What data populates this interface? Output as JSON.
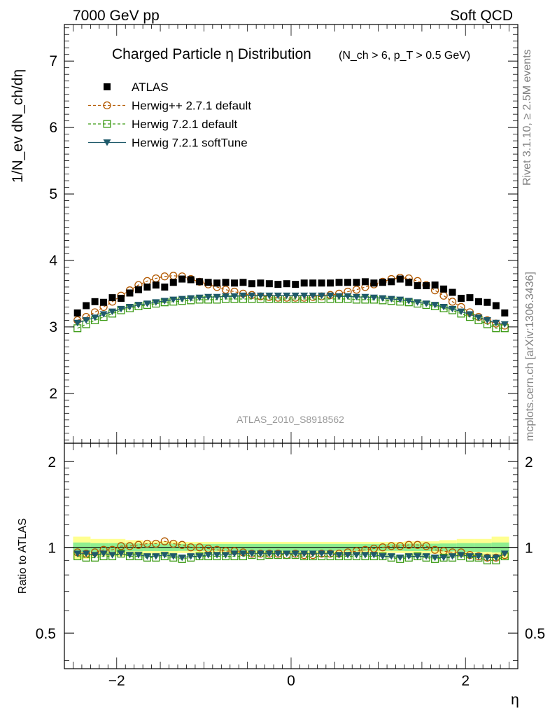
{
  "header": {
    "left_label": "7000 GeV pp",
    "right_label": "Soft QCD"
  },
  "side_labels": {
    "rivet": "Rivet 3.1.10, ≥ 2.5M events",
    "mcplots": "mcplots.cern.ch [arXiv:1306.3436]"
  },
  "watermark": "ATLAS_2010_S8918562",
  "colors": {
    "atlas": "#000000",
    "herwigpp": "#b35900",
    "herwig_default": "#3a9a13",
    "herwig_softtune": "#1f5a6a",
    "band_inner": "#90ee90",
    "band_outer": "#ffff90"
  },
  "chart_data": [
    {
      "panel": "main",
      "type": "scatter",
      "title": "Charged Particle η Distribution",
      "subtitle": "(N_ch > 6, p_T > 0.5 GeV)",
      "xlabel": "η",
      "ylabel": "1/N_ev dN_ch/dη",
      "xlim": [
        -2.5,
        2.5
      ],
      "ylim": [
        1.25,
        7.55
      ],
      "y_ticks": [
        2,
        3,
        4,
        5,
        6,
        7
      ],
      "legend_position": "top-left",
      "x": [
        -2.45,
        -2.35,
        -2.25,
        -2.15,
        -2.05,
        -1.95,
        -1.85,
        -1.75,
        -1.65,
        -1.55,
        -1.45,
        -1.35,
        -1.25,
        -1.15,
        -1.05,
        -0.95,
        -0.85,
        -0.75,
        -0.65,
        -0.55,
        -0.45,
        -0.35,
        -0.25,
        -0.15,
        -0.05,
        0.05,
        0.15,
        0.25,
        0.35,
        0.45,
        0.55,
        0.65,
        0.75,
        0.85,
        0.95,
        1.05,
        1.15,
        1.25,
        1.35,
        1.45,
        1.55,
        1.65,
        1.75,
        1.85,
        1.95,
        2.05,
        2.15,
        2.25,
        2.35,
        2.45
      ],
      "series": [
        {
          "name": "ATLAS",
          "marker": "filled-square",
          "values": [
            3.21,
            3.32,
            3.38,
            3.37,
            3.44,
            3.43,
            3.51,
            3.56,
            3.6,
            3.63,
            3.6,
            3.67,
            3.72,
            3.71,
            3.68,
            3.67,
            3.66,
            3.67,
            3.66,
            3.67,
            3.65,
            3.66,
            3.65,
            3.64,
            3.65,
            3.64,
            3.66,
            3.66,
            3.66,
            3.66,
            3.67,
            3.67,
            3.67,
            3.68,
            3.66,
            3.67,
            3.68,
            3.72,
            3.67,
            3.62,
            3.62,
            3.63,
            3.57,
            3.52,
            3.43,
            3.44,
            3.38,
            3.37,
            3.32,
            3.21
          ]
        },
        {
          "name": "Herwig++ 2.7.1 default",
          "marker": "open-circle",
          "line": "dashed",
          "values": [
            3.1,
            3.15,
            3.22,
            3.3,
            3.38,
            3.47,
            3.55,
            3.63,
            3.69,
            3.73,
            3.76,
            3.77,
            3.76,
            3.72,
            3.68,
            3.64,
            3.6,
            3.56,
            3.53,
            3.5,
            3.48,
            3.46,
            3.45,
            3.44,
            3.44,
            3.44,
            3.44,
            3.45,
            3.46,
            3.48,
            3.5,
            3.53,
            3.56,
            3.6,
            3.64,
            3.68,
            3.72,
            3.74,
            3.73,
            3.69,
            3.63,
            3.55,
            3.47,
            3.38,
            3.3,
            3.22,
            3.15,
            3.1,
            3.05,
            3.02
          ]
        },
        {
          "name": "Herwig 7.2.1 default",
          "marker": "open-square",
          "line": "dashed",
          "values": [
            2.98,
            3.04,
            3.1,
            3.15,
            3.2,
            3.25,
            3.28,
            3.31,
            3.33,
            3.35,
            3.37,
            3.38,
            3.39,
            3.4,
            3.41,
            3.41,
            3.41,
            3.42,
            3.42,
            3.42,
            3.42,
            3.42,
            3.42,
            3.42,
            3.42,
            3.42,
            3.42,
            3.42,
            3.42,
            3.42,
            3.42,
            3.42,
            3.41,
            3.41,
            3.41,
            3.4,
            3.39,
            3.38,
            3.37,
            3.35,
            3.33,
            3.31,
            3.28,
            3.25,
            3.2,
            3.15,
            3.1,
            3.04,
            2.98,
            2.98
          ]
        },
        {
          "name": "Herwig 7.2.1 softTune",
          "marker": "filled-triangle-down",
          "line": "solid",
          "values": [
            3.06,
            3.1,
            3.14,
            3.19,
            3.23,
            3.27,
            3.3,
            3.33,
            3.35,
            3.37,
            3.39,
            3.41,
            3.42,
            3.43,
            3.44,
            3.45,
            3.45,
            3.46,
            3.46,
            3.47,
            3.47,
            3.47,
            3.47,
            3.47,
            3.47,
            3.47,
            3.47,
            3.47,
            3.47,
            3.47,
            3.46,
            3.46,
            3.45,
            3.45,
            3.44,
            3.43,
            3.42,
            3.41,
            3.39,
            3.37,
            3.35,
            3.33,
            3.3,
            3.27,
            3.23,
            3.19,
            3.14,
            3.1,
            3.06,
            3.04
          ]
        }
      ]
    },
    {
      "panel": "ratio",
      "type": "scatter",
      "xlabel": "η",
      "ylabel": "Ratio to ATLAS",
      "xlim": [
        -2.6,
        2.6
      ],
      "ylim": [
        0.375,
        2.32
      ],
      "y_scale": "log",
      "y_ticks": [
        0.5,
        1,
        2
      ],
      "x_ticks": [
        -2,
        0,
        2
      ],
      "reference": 1.0,
      "x": [
        -2.45,
        -2.35,
        -2.25,
        -2.15,
        -2.05,
        -1.95,
        -1.85,
        -1.75,
        -1.65,
        -1.55,
        -1.45,
        -1.35,
        -1.25,
        -1.15,
        -1.05,
        -0.95,
        -0.85,
        -0.75,
        -0.65,
        -0.55,
        -0.45,
        -0.35,
        -0.25,
        -0.15,
        -0.05,
        0.05,
        0.15,
        0.25,
        0.35,
        0.45,
        0.55,
        0.65,
        0.75,
        0.85,
        0.95,
        1.05,
        1.15,
        1.25,
        1.35,
        1.45,
        1.55,
        1.65,
        1.75,
        1.85,
        1.95,
        2.05,
        2.15,
        2.25,
        2.35,
        2.45
      ],
      "bands": {
        "x_edges": [
          -2.5,
          -2.3,
          -2.1,
          -1.9,
          -1.7,
          -1.5,
          -1.3,
          1.3,
          1.5,
          1.7,
          1.9,
          2.1,
          2.3,
          2.5
        ],
        "inner_half_width": [
          0.04,
          0.035,
          0.035,
          0.032,
          0.03,
          0.03,
          0.028,
          0.03,
          0.03,
          0.032,
          0.035,
          0.035,
          0.04
        ],
        "outer_half_width": [
          0.09,
          0.07,
          0.07,
          0.06,
          0.05,
          0.05,
          0.045,
          0.05,
          0.05,
          0.06,
          0.07,
          0.07,
          0.09
        ]
      },
      "series": [
        {
          "name": "Herwig++ 2.7.1 default",
          "values": [
            0.96,
            0.95,
            0.96,
            0.98,
            0.98,
            1.01,
            1.01,
            1.02,
            1.03,
            1.03,
            1.05,
            1.03,
            1.02,
            1.0,
            1.0,
            0.99,
            0.98,
            0.97,
            0.97,
            0.96,
            0.95,
            0.95,
            0.95,
            0.95,
            0.94,
            0.95,
            0.94,
            0.94,
            0.95,
            0.95,
            0.95,
            0.96,
            0.97,
            0.98,
            0.99,
            1.0,
            1.01,
            1.01,
            1.02,
            1.02,
            1.01,
            0.98,
            0.97,
            0.96,
            0.96,
            0.94,
            0.93,
            0.92,
            0.92,
            0.94
          ]
        },
        {
          "name": "Herwig 7.2.1 default",
          "values": [
            0.93,
            0.92,
            0.92,
            0.93,
            0.93,
            0.95,
            0.93,
            0.93,
            0.92,
            0.92,
            0.93,
            0.92,
            0.91,
            0.92,
            0.93,
            0.93,
            0.93,
            0.93,
            0.93,
            0.93,
            0.94,
            0.93,
            0.94,
            0.94,
            0.94,
            0.94,
            0.93,
            0.93,
            0.93,
            0.93,
            0.93,
            0.93,
            0.93,
            0.93,
            0.93,
            0.93,
            0.92,
            0.91,
            0.92,
            0.93,
            0.92,
            0.91,
            0.92,
            0.92,
            0.93,
            0.92,
            0.92,
            0.9,
            0.9,
            0.93
          ]
        },
        {
          "name": "Herwig 7.2.1 softTune",
          "values": [
            0.95,
            0.95,
            0.94,
            0.95,
            0.94,
            0.95,
            0.94,
            0.94,
            0.93,
            0.93,
            0.94,
            0.93,
            0.92,
            0.93,
            0.93,
            0.94,
            0.94,
            0.94,
            0.95,
            0.95,
            0.95,
            0.95,
            0.95,
            0.95,
            0.95,
            0.95,
            0.95,
            0.95,
            0.95,
            0.95,
            0.94,
            0.94,
            0.94,
            0.94,
            0.94,
            0.93,
            0.93,
            0.92,
            0.93,
            0.93,
            0.93,
            0.92,
            0.92,
            0.93,
            0.94,
            0.93,
            0.93,
            0.92,
            0.92,
            0.95
          ]
        }
      ]
    }
  ]
}
